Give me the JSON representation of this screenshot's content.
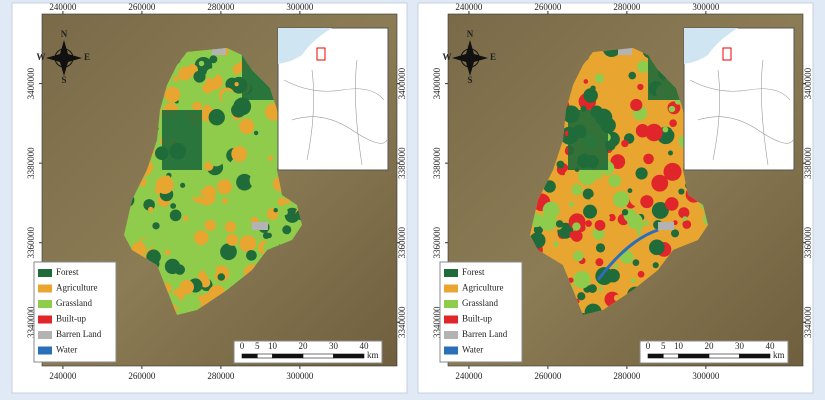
{
  "map_frame": {
    "xlim": [
      234700,
      324600
    ],
    "ylim": [
      3329000,
      3417500
    ],
    "x_ticks": [
      240000,
      260000,
      280000,
      300000
    ],
    "y_ticks": [
      3340000,
      3360000,
      3380000,
      3400000
    ],
    "compass": {
      "n": "N",
      "s": "S",
      "e": "E",
      "w": "W"
    },
    "scale": {
      "ticks": [
        0,
        5,
        10,
        20,
        30,
        40
      ],
      "unit": "km"
    },
    "legend": [
      {
        "label": "Forest",
        "color": "#1f6b3a"
      },
      {
        "label": "Agriculture",
        "color": "#e8a530"
      },
      {
        "label": "Grassland",
        "color": "#8fcc4c"
      },
      {
        "label": "Built-up",
        "color": "#e0262a"
      },
      {
        "label": "Barren Land",
        "color": "#b3b3b3"
      },
      {
        "label": "Water",
        "color": "#2a6fb8"
      }
    ]
  }
}
